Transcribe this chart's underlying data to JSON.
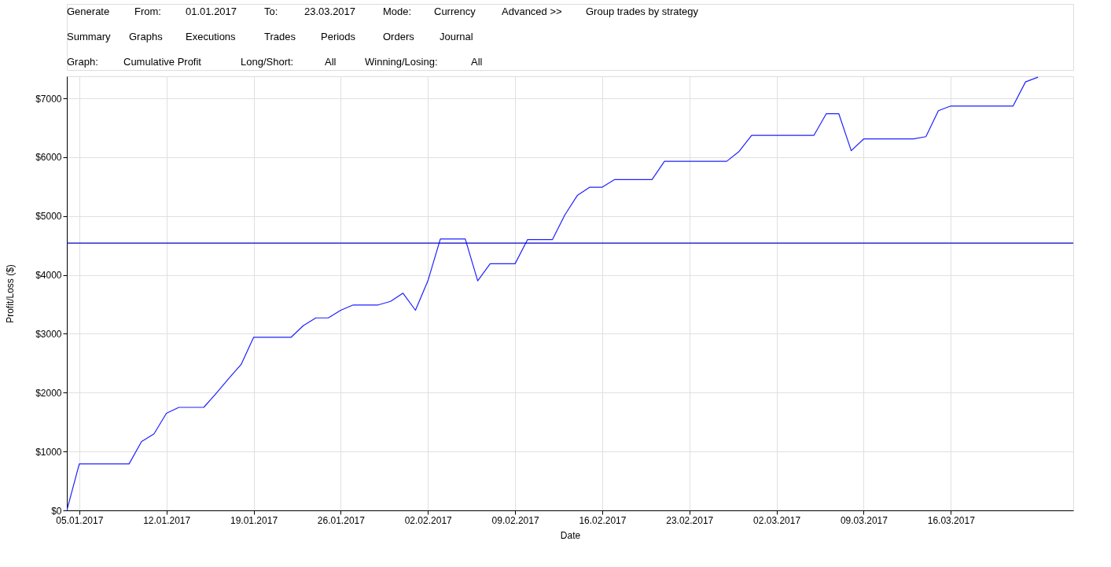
{
  "chart_data": {
    "type": "line",
    "xlabel": "Date",
    "ylabel": "Profit/Loss ($)",
    "x": [
      "2017-01-04",
      "2017-01-05",
      "2017-01-06",
      "2017-01-07",
      "2017-01-08",
      "2017-01-09",
      "2017-01-10",
      "2017-01-11",
      "2017-01-12",
      "2017-01-13",
      "2017-01-14",
      "2017-01-15",
      "2017-01-16",
      "2017-01-17",
      "2017-01-18",
      "2017-01-19",
      "2017-01-20",
      "2017-01-21",
      "2017-01-22",
      "2017-01-23",
      "2017-01-24",
      "2017-01-25",
      "2017-01-26",
      "2017-01-27",
      "2017-01-28",
      "2017-01-29",
      "2017-01-30",
      "2017-01-31",
      "2017-02-01",
      "2017-02-02",
      "2017-02-03",
      "2017-02-04",
      "2017-02-05",
      "2017-02-06",
      "2017-02-07",
      "2017-02-08",
      "2017-02-09",
      "2017-02-10",
      "2017-02-11",
      "2017-02-12",
      "2017-02-13",
      "2017-02-14",
      "2017-02-15",
      "2017-02-16",
      "2017-02-17",
      "2017-02-18",
      "2017-02-19",
      "2017-02-20",
      "2017-02-21",
      "2017-02-22",
      "2017-02-23",
      "2017-02-24",
      "2017-02-25",
      "2017-02-26",
      "2017-02-27",
      "2017-02-28",
      "2017-03-01",
      "2017-03-02",
      "2017-03-03",
      "2017-03-04",
      "2017-03-05",
      "2017-03-06",
      "2017-03-07",
      "2017-03-08",
      "2017-03-09",
      "2017-03-10",
      "2017-03-11",
      "2017-03-12",
      "2017-03-13",
      "2017-03-14",
      "2017-03-15",
      "2017-03-16",
      "2017-03-17",
      "2017-03-18",
      "2017-03-19",
      "2017-03-20",
      "2017-03-21",
      "2017-03-22",
      "2017-03-23"
    ],
    "series": [
      {
        "color": "#2020ff",
        "values": [
          0,
          790,
          790,
          790,
          790,
          790,
          1170,
          1300,
          1650,
          1750,
          1750,
          1750,
          1990,
          2240,
          2480,
          2940,
          2940,
          2940,
          2940,
          3140,
          3270,
          3270,
          3400,
          3490,
          3490,
          3490,
          3550,
          3690,
          3400,
          3900,
          4610,
          4610,
          4610,
          3900,
          4190,
          4190,
          4190,
          4600,
          4600,
          4600,
          5020,
          5350,
          5490,
          5490,
          5620,
          5620,
          5620,
          5620,
          5930,
          5930,
          5930,
          5930,
          5930,
          5930,
          6100,
          6370,
          6370,
          6370,
          6370,
          6370,
          6370,
          6740,
          6740,
          6110,
          6310,
          6310,
          6310,
          6310,
          6310,
          6350,
          6790,
          6870,
          6870,
          6870,
          6870,
          6870,
          6870,
          7280,
          7360
        ]
      }
    ],
    "xlim": [
      "2017-01-04",
      "2017-03-25T20:00"
    ],
    "xticks": [
      {
        "value": "2017-01-05",
        "label": "05.01.2017"
      },
      {
        "value": "2017-01-12",
        "label": "12.01.2017"
      },
      {
        "value": "2017-01-19",
        "label": "19.01.2017"
      },
      {
        "value": "2017-01-26",
        "label": "26.01.2017"
      },
      {
        "value": "2017-02-02",
        "label": "02.02.2017"
      },
      {
        "value": "2017-02-09",
        "label": "09.02.2017"
      },
      {
        "value": "2017-02-16",
        "label": "16.02.2017"
      },
      {
        "value": "2017-02-23",
        "label": "23.02.2017"
      },
      {
        "value": "2017-03-02",
        "label": "02.03.2017"
      },
      {
        "value": "2017-03-09",
        "label": "09.03.2017"
      },
      {
        "value": "2017-03-16",
        "label": "16.03.2017"
      }
    ],
    "ylim": [
      0,
      7375
    ],
    "yticks": [
      {
        "value": 0,
        "label": "$0"
      },
      {
        "value": 1000,
        "label": "$1000"
      },
      {
        "value": 2000,
        "label": "$2000"
      },
      {
        "value": 3000,
        "label": "$3000"
      },
      {
        "value": 4000,
        "label": "$4000"
      },
      {
        "value": 5000,
        "label": "$5000"
      },
      {
        "value": 6000,
        "label": "$6000"
      },
      {
        "value": 7000,
        "label": "$7000"
      }
    ],
    "ref_lines": [
      {
        "axis": "y",
        "value": 4540,
        "color": "#0000cd"
      }
    ],
    "grid": true,
    "marker": "none",
    "line_style": "solid",
    "annotations": [
      "Generate",
      "From:",
      "01.01.2017",
      "To:",
      "23.03.2017",
      "Mode:",
      "Currency",
      "Advanced >>",
      "Group trades by strategy",
      "Summary",
      "Graphs",
      "Executions",
      "Trades",
      "Periods",
      "Orders",
      "Journal",
      "Graph:",
      "Cumulative Profit",
      "Long/Short:",
      "All",
      "Winning/Losing:",
      "All"
    ]
  }
}
